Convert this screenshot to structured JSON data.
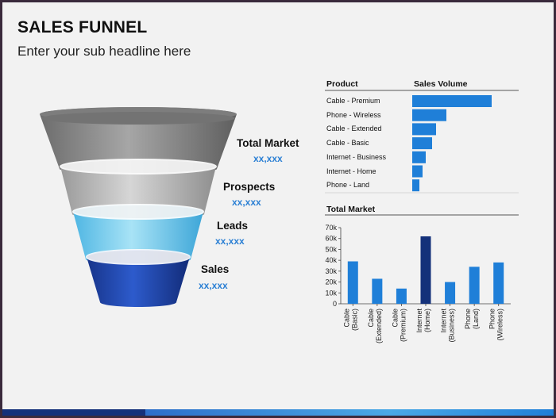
{
  "slide": {
    "title": "SALES FUNNEL",
    "subtitle": "Enter your sub headline here"
  },
  "funnel": {
    "stages": [
      {
        "label": "Total Market",
        "value": "xx,xxx",
        "color": "#8c8c8c"
      },
      {
        "label": "Prospects",
        "value": "xx,xxx",
        "color": "#bdbdbd"
      },
      {
        "label": "Leads",
        "value": "xx,xxx",
        "color": "#7fd0ee"
      },
      {
        "label": "Sales",
        "value": "xx,xxx",
        "color": "#1e44a8"
      }
    ]
  },
  "chart_data": [
    {
      "type": "bar",
      "orientation": "horizontal",
      "column_headers": [
        "Product",
        "Sales Volume"
      ],
      "categories": [
        "Cable - Premium",
        "Phone - Wireless",
        "Cable - Extended",
        "Cable - Basic",
        "Internet - Business",
        "Internet - Home",
        "Phone - Land"
      ],
      "values": [
        100,
        43,
        30,
        25,
        17,
        13,
        9
      ],
      "color": "#1f7fd8"
    },
    {
      "type": "bar",
      "title": "Total Market",
      "categories": [
        "Cable (Basic)",
        "Cable (Extended)",
        "Cable (Premium)",
        "Internet (Home)",
        "Internet (Business)",
        "Phone (Land)",
        "Phone (Wireless)"
      ],
      "tick_labels": [
        [
          "Cable",
          "(Basic)"
        ],
        [
          "Cable",
          "(Extended)"
        ],
        [
          "Cable",
          "(Premium)"
        ],
        [
          "Internet",
          "(Home)"
        ],
        [
          "Internet",
          "(Business)"
        ],
        [
          "Phone",
          "(Land)"
        ],
        [
          "Phone",
          "(Wireless)"
        ]
      ],
      "values": [
        39000,
        23000,
        14000,
        62000,
        20000,
        34000,
        38000
      ],
      "highlight_index": 3,
      "color": "#1f7fd8",
      "highlight_color": "#14317a",
      "ylim": [
        0,
        70000
      ],
      "yticks": [
        0,
        10000,
        20000,
        30000,
        40000,
        50000,
        60000,
        70000
      ],
      "ytick_labels": [
        "0",
        "10k",
        "20k",
        "30k",
        "40k",
        "50k",
        "60k",
        "70k"
      ]
    }
  ]
}
